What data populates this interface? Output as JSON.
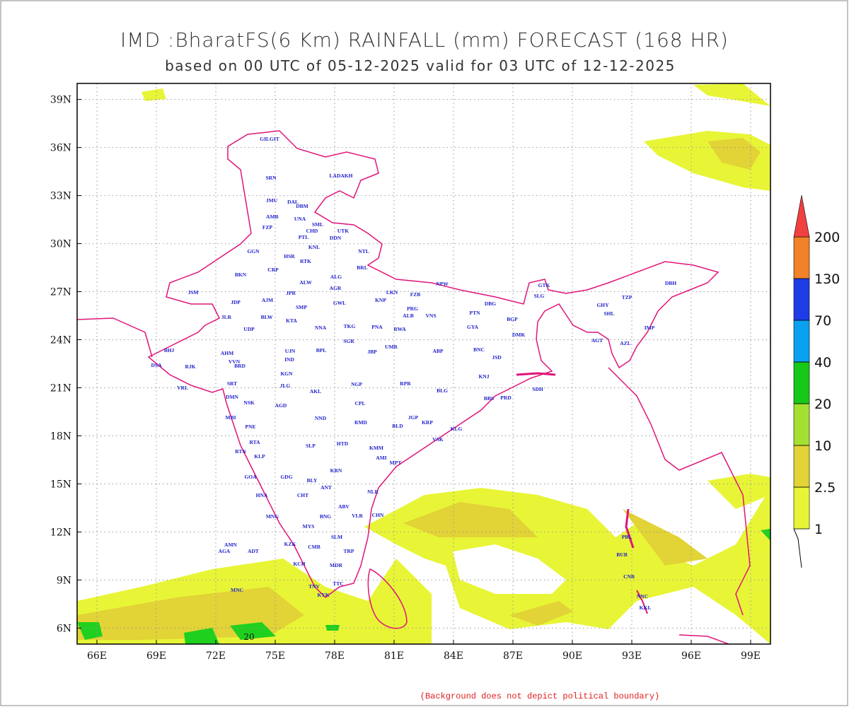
{
  "title": "IMD :BharatFS(6 Km) RAINFALL (mm) FORECAST (168 HR)",
  "subtitle": "based on 00 UTC of 05-12-2025 valid for 03 UTC of 12-12-2025",
  "footnote": "(Background does not depict political boundary)",
  "map": {
    "xlim": [
      65,
      100
    ],
    "ylim": [
      5,
      40
    ],
    "xticks": [
      {
        "value": 66,
        "label": "66E"
      },
      {
        "value": 69,
        "label": "69E"
      },
      {
        "value": 72,
        "label": "72E"
      },
      {
        "value": 75,
        "label": "75E"
      },
      {
        "value": 78,
        "label": "78E"
      },
      {
        "value": 81,
        "label": "81E"
      },
      {
        "value": 84,
        "label": "84E"
      },
      {
        "value": 87,
        "label": "87E"
      },
      {
        "value": 90,
        "label": "90E"
      },
      {
        "value": 93,
        "label": "93E"
      },
      {
        "value": 96,
        "label": "96E"
      },
      {
        "value": 99,
        "label": "99E"
      }
    ],
    "yticks": [
      {
        "value": 6,
        "label": "6N"
      },
      {
        "value": 9,
        "label": "9N"
      },
      {
        "value": 12,
        "label": "12N"
      },
      {
        "value": 15,
        "label": "15N"
      },
      {
        "value": 18,
        "label": "18N"
      },
      {
        "value": 21,
        "label": "21N"
      },
      {
        "value": 24,
        "label": "24N"
      },
      {
        "value": 27,
        "label": "27N"
      },
      {
        "value": 30,
        "label": "30N"
      },
      {
        "value": 33,
        "label": "33N"
      },
      {
        "value": 36,
        "label": "36N"
      },
      {
        "value": 39,
        "label": "39N"
      }
    ],
    "grid": true
  },
  "legend": {
    "levels": [
      1,
      2.5,
      10,
      20,
      40,
      70,
      130,
      200
    ],
    "colors": [
      "#e8f536",
      "#e2d336",
      "#a4e032",
      "#18c818",
      "#0aa0f0",
      "#1e3ce6",
      "#f08228",
      "#f04040"
    ]
  },
  "contour_label": "20",
  "stations": [
    "GILGIT",
    "LADAKH",
    "SRN",
    "JMU",
    "DAL",
    "DBM",
    "AMR",
    "UNA",
    "SML",
    "FZP",
    "CHD",
    "PTL",
    "UTK",
    "DDN",
    "GGN",
    "KNL",
    "HSR",
    "NTL",
    "RTK",
    "BKN",
    "CRP",
    "ALG",
    "BRL",
    "ALW",
    "AGR",
    "JSM",
    "JPR",
    "JDP",
    "LKN",
    "FZB",
    "NPW",
    "KNP",
    "GWL",
    "AJM",
    "DBG",
    "PRG",
    "ALB",
    "VNS",
    "PTN",
    "SMP",
    "BLW",
    "KTA",
    "JLR",
    "TKG",
    "NNA",
    "PNA",
    "RWA",
    "GYA",
    "BGP",
    "UDP",
    "SGR",
    "JBP",
    "UMR",
    "ABP",
    "BNC",
    "DMK",
    "GTK",
    "SLG",
    "TZP",
    "DBH",
    "IMP",
    "AZL",
    "AGT",
    "SHL",
    "GHY",
    "BHJ",
    "DSA",
    "RJK",
    "VRL",
    "AHM",
    "VVN",
    "BRD",
    "SRT",
    "IND",
    "BPL",
    "UJN",
    "KGN",
    "JLG",
    "AKL",
    "NGP",
    "RPR",
    "BLG",
    "JSD",
    "KNJ",
    "BBS",
    "PRD",
    "SDH",
    "DMN",
    "NSK",
    "AGD",
    "CPL",
    "NND",
    "RMD",
    "BLD",
    "JGP",
    "KRP",
    "VSK",
    "KLG",
    "MBI",
    "PNE",
    "HTD",
    "KMM",
    "RTA",
    "SLP",
    "RTN",
    "KLP",
    "AMI",
    "MPT",
    "KRN",
    "GOA",
    "GDG",
    "BLY",
    "ANT",
    "HNA",
    "CHT",
    "NLR",
    "MNG",
    "ABV",
    "MYS",
    "BNG",
    "VLR",
    "CHN",
    "KZK",
    "SLM",
    "TRP",
    "CMB",
    "KCH",
    "MDR",
    "TNV",
    "TTC",
    "KYK",
    "AMN",
    "AGA",
    "ADT",
    "MNC",
    "PBL",
    "BUB",
    "CNB",
    "NNC",
    "KKL"
  ]
}
